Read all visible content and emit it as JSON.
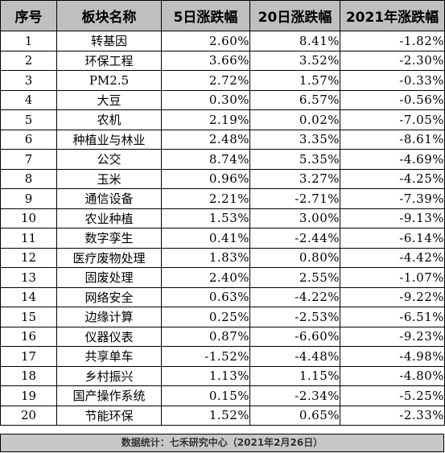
{
  "table": {
    "headers": [
      "序号",
      "板块名称",
      "5日涨跌幅",
      "20日涨跌幅",
      "2021年涨跌幅"
    ],
    "rows": [
      [
        "1",
        "转基因",
        "2.60%",
        "8.41%",
        "-1.82%"
      ],
      [
        "2",
        "环保工程",
        "3.66%",
        "3.52%",
        "-2.30%"
      ],
      [
        "3",
        "PM2.5",
        "2.72%",
        "1.57%",
        "-0.33%"
      ],
      [
        "4",
        "大豆",
        "0.30%",
        "6.57%",
        "-0.56%"
      ],
      [
        "5",
        "农机",
        "2.19%",
        "0.02%",
        "-7.05%"
      ],
      [
        "6",
        "种植业与林业",
        "2.48%",
        "3.35%",
        "-8.61%"
      ],
      [
        "7",
        "公交",
        "8.74%",
        "5.35%",
        "-4.69%"
      ],
      [
        "8",
        "玉米",
        "0.96%",
        "3.27%",
        "-4.25%"
      ],
      [
        "9",
        "通信设备",
        "2.21%",
        "-2.71%",
        "-7.39%"
      ],
      [
        "10",
        "农业种植",
        "1.53%",
        "3.00%",
        "-9.13%"
      ],
      [
        "11",
        "数字孪生",
        "0.41%",
        "-2.44%",
        "-6.14%"
      ],
      [
        "12",
        "医疗废物处理",
        "1.83%",
        "0.80%",
        "-4.42%"
      ],
      [
        "13",
        "固废处理",
        "2.40%",
        "2.55%",
        "-1.07%"
      ],
      [
        "14",
        "网络安全",
        "0.63%",
        "-4.22%",
        "-9.22%"
      ],
      [
        "15",
        "边缘计算",
        "0.25%",
        "-2.53%",
        "-6.51%"
      ],
      [
        "16",
        "仪器仪表",
        "0.87%",
        "-6.60%",
        "-9.23%"
      ],
      [
        "17",
        "共享单车",
        "-1.52%",
        "-4.48%",
        "-4.98%"
      ],
      [
        "18",
        "乡村振兴",
        "1.13%",
        "1.15%",
        "-4.80%"
      ],
      [
        "19",
        "国产操作系统",
        "0.15%",
        "-2.34%",
        "-5.25%"
      ],
      [
        "20",
        "节能环保",
        "1.52%",
        "0.65%",
        "-2.33%"
      ]
    ]
  },
  "footer": {
    "note": "数据统计：七禾研究中心（2021年2月26日）"
  },
  "colors": {
    "header_background": "#bfbfbf",
    "footer_background": "#c8c8c8",
    "border": "#000000"
  }
}
